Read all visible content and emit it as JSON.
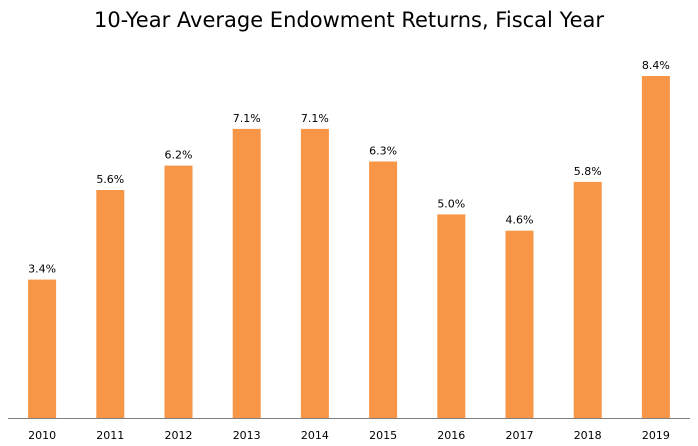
{
  "chart_data": {
    "type": "bar",
    "title": "10-Year Average Endowment Returns, Fiscal Year",
    "xlabel": "",
    "ylabel": "",
    "categories": [
      "2010",
      "2011",
      "2012",
      "2013",
      "2014",
      "2015",
      "2016",
      "2017",
      "2018",
      "2019"
    ],
    "values": [
      3.4,
      5.6,
      6.2,
      7.1,
      7.1,
      6.3,
      5.0,
      4.6,
      5.8,
      8.4
    ],
    "data_labels": [
      "3.4%",
      "5.6%",
      "6.2%",
      "7.1%",
      "7.1%",
      "6.3%",
      "5.0%",
      "4.6%",
      "5.8%",
      "8.4%"
    ],
    "ylim": [
      0,
      8.4
    ],
    "y_axis_visible": false,
    "grid": false,
    "legend": "none",
    "bar_color": "#F79646",
    "axis_color": "#808080"
  }
}
